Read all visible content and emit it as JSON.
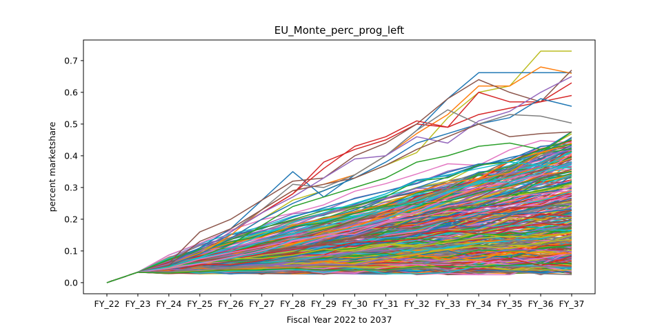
{
  "chart_data": {
    "type": "line",
    "title": "EU_Monte_perc_prog_left",
    "xlabel": "Fiscal Year 2022 to 2037",
    "ylabel": "percent marketshare",
    "categories": [
      "FY_22",
      "FY_23",
      "FY_24",
      "FY_25",
      "FY_26",
      "FY_27",
      "FY_28",
      "FY_29",
      "FY_30",
      "FY_31",
      "FY_32",
      "FY_33",
      "FY_34",
      "FY_35",
      "FY_36",
      "FY_37"
    ],
    "yticks": [
      0.0,
      0.1,
      0.2,
      0.3,
      0.4,
      0.5,
      0.6,
      0.7
    ],
    "ytick_labels": [
      "0.0",
      "0.1",
      "0.2",
      "0.3",
      "0.4",
      "0.5",
      "0.6",
      "0.7"
    ],
    "ylim": [
      -0.035,
      0.765
    ],
    "grid": false,
    "legend": "none",
    "palette": [
      "#1f77b4",
      "#ff7f0e",
      "#2ca02c",
      "#d62728",
      "#9467bd",
      "#8c564b",
      "#e377c2",
      "#7f7f7f",
      "#bcbd22",
      "#17becf"
    ],
    "series_note_count": 420,
    "series": [
      {
        "color": "#bcbd22",
        "values": [
          0.0,
          0.033,
          0.058,
          0.1,
          0.14,
          0.2,
          0.26,
          0.29,
          0.33,
          0.37,
          0.41,
          0.52,
          0.6,
          0.62,
          0.73,
          0.73
        ]
      },
      {
        "color": "#1f77b4",
        "values": [
          0.0,
          0.033,
          0.06,
          0.11,
          0.17,
          0.26,
          0.35,
          0.27,
          0.34,
          0.4,
          0.48,
          0.58,
          0.662,
          0.662,
          0.662,
          0.662
        ]
      },
      {
        "color": "#ff7f0e",
        "values": [
          0.0,
          0.033,
          0.058,
          0.09,
          0.15,
          0.23,
          0.29,
          0.31,
          0.34,
          0.4,
          0.47,
          0.53,
          0.62,
          0.62,
          0.68,
          0.66
        ]
      },
      {
        "color": "#d62728",
        "values": [
          0.0,
          0.033,
          0.06,
          0.1,
          0.16,
          0.22,
          0.28,
          0.38,
          0.42,
          0.45,
          0.5,
          0.49,
          0.6,
          0.57,
          0.57,
          0.63
        ]
      },
      {
        "color": "#8c564b",
        "values": [
          0.0,
          0.033,
          0.062,
          0.16,
          0.2,
          0.26,
          0.32,
          0.33,
          0.4,
          0.44,
          0.5,
          0.58,
          0.64,
          0.6,
          0.57,
          0.67
        ]
      },
      {
        "color": "#d62728",
        "values": [
          0.0,
          0.033,
          0.06,
          0.1,
          0.16,
          0.22,
          0.28,
          0.36,
          0.43,
          0.46,
          0.51,
          0.49,
          0.53,
          0.55,
          0.57,
          0.59
        ]
      },
      {
        "color": "#1f77b4",
        "values": [
          0.0,
          0.033,
          0.055,
          0.09,
          0.14,
          0.2,
          0.25,
          0.29,
          0.33,
          0.38,
          0.44,
          0.47,
          0.5,
          0.52,
          0.58,
          0.556
        ]
      },
      {
        "color": "#7f7f7f",
        "values": [
          0.0,
          0.033,
          0.058,
          0.1,
          0.16,
          0.23,
          0.31,
          0.3,
          0.34,
          0.4,
          0.48,
          0.545,
          0.5,
          0.53,
          0.525,
          0.503
        ]
      },
      {
        "color": "#9467bd",
        "values": [
          0.0,
          0.033,
          0.06,
          0.1,
          0.16,
          0.22,
          0.27,
          0.33,
          0.39,
          0.4,
          0.46,
          0.44,
          0.51,
          0.54,
          0.6,
          0.65
        ]
      },
      {
        "color": "#8c564b",
        "values": [
          0.0,
          0.033,
          0.055,
          0.13,
          0.17,
          0.23,
          0.29,
          0.31,
          0.33,
          0.37,
          0.42,
          0.46,
          0.5,
          0.46,
          0.47,
          0.475
        ]
      },
      {
        "color": "#2ca02c",
        "values": [
          0.0,
          0.033,
          0.05,
          0.08,
          0.12,
          0.18,
          0.24,
          0.27,
          0.3,
          0.33,
          0.38,
          0.4,
          0.43,
          0.44,
          0.42,
          0.45
        ]
      },
      {
        "color": "#17becf",
        "values": [
          0.0,
          0.033,
          0.05,
          0.08,
          0.11,
          0.15,
          0.19,
          0.22,
          0.25,
          0.28,
          0.32,
          0.34,
          0.36,
          0.38,
          0.37,
          0.36
        ]
      },
      {
        "color": "#e377c2",
        "values": [
          0.0,
          0.033,
          0.045,
          0.06,
          0.08,
          0.1,
          0.13,
          0.15,
          0.17,
          0.19,
          0.22,
          0.24,
          0.26,
          0.27,
          0.28,
          0.29
        ]
      },
      {
        "color": "#bcbd22",
        "values": [
          0.0,
          0.033,
          0.03,
          0.04,
          0.045,
          0.05,
          0.05,
          0.05,
          0.05,
          0.05,
          0.05,
          0.05,
          0.05,
          0.04,
          0.04,
          0.04
        ]
      },
      {
        "color": "#7f7f7f",
        "values": [
          0.0,
          0.033,
          0.035,
          0.04,
          0.045,
          0.05,
          0.05,
          0.055,
          0.055,
          0.06,
          0.06,
          0.06,
          0.055,
          0.05,
          0.05,
          0.05
        ]
      },
      {
        "color": "#2ca02c",
        "values": [
          0.0,
          0.033,
          0.03,
          0.035,
          0.04,
          0.04,
          0.045,
          0.04,
          0.04,
          0.04,
          0.05,
          0.05,
          0.05,
          0.055,
          0.06,
          0.06
        ]
      }
    ]
  }
}
